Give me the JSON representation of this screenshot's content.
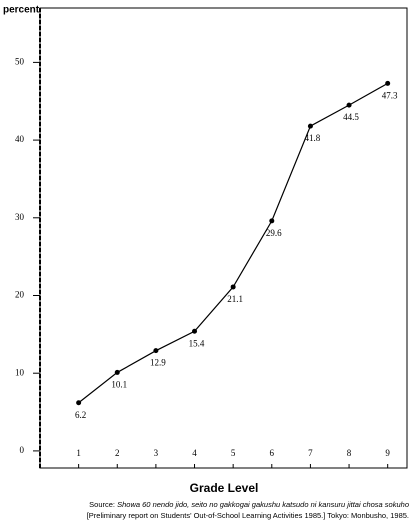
{
  "chart_data": {
    "type": "line",
    "ylabel": "percent",
    "xlabel": "Grade Level",
    "x": [
      1,
      2,
      3,
      4,
      5,
      6,
      7,
      8,
      9
    ],
    "values": [
      6.2,
      10.1,
      12.9,
      15.4,
      21.1,
      29.6,
      41.8,
      44.5,
      47.3
    ],
    "color": "#000000",
    "xlim": [
      0,
      9.5
    ],
    "xticks": [
      1,
      2,
      3,
      4,
      5,
      6,
      7,
      8,
      9
    ],
    "ylim": [
      -2.2,
      57
    ],
    "yticks": [
      0,
      10,
      20,
      30,
      40,
      50
    ],
    "grid": false,
    "source": {
      "prefix": "Source:",
      "title": "Showa 60 nendo jido, seito no gakkogai gakushu katsudo ni kansuru jittai chosa sokuho",
      "details": "[Preliminary report on Students' Out-of-School Learning Activities 1985.] Tokyo: Monbusho, 1985."
    }
  }
}
